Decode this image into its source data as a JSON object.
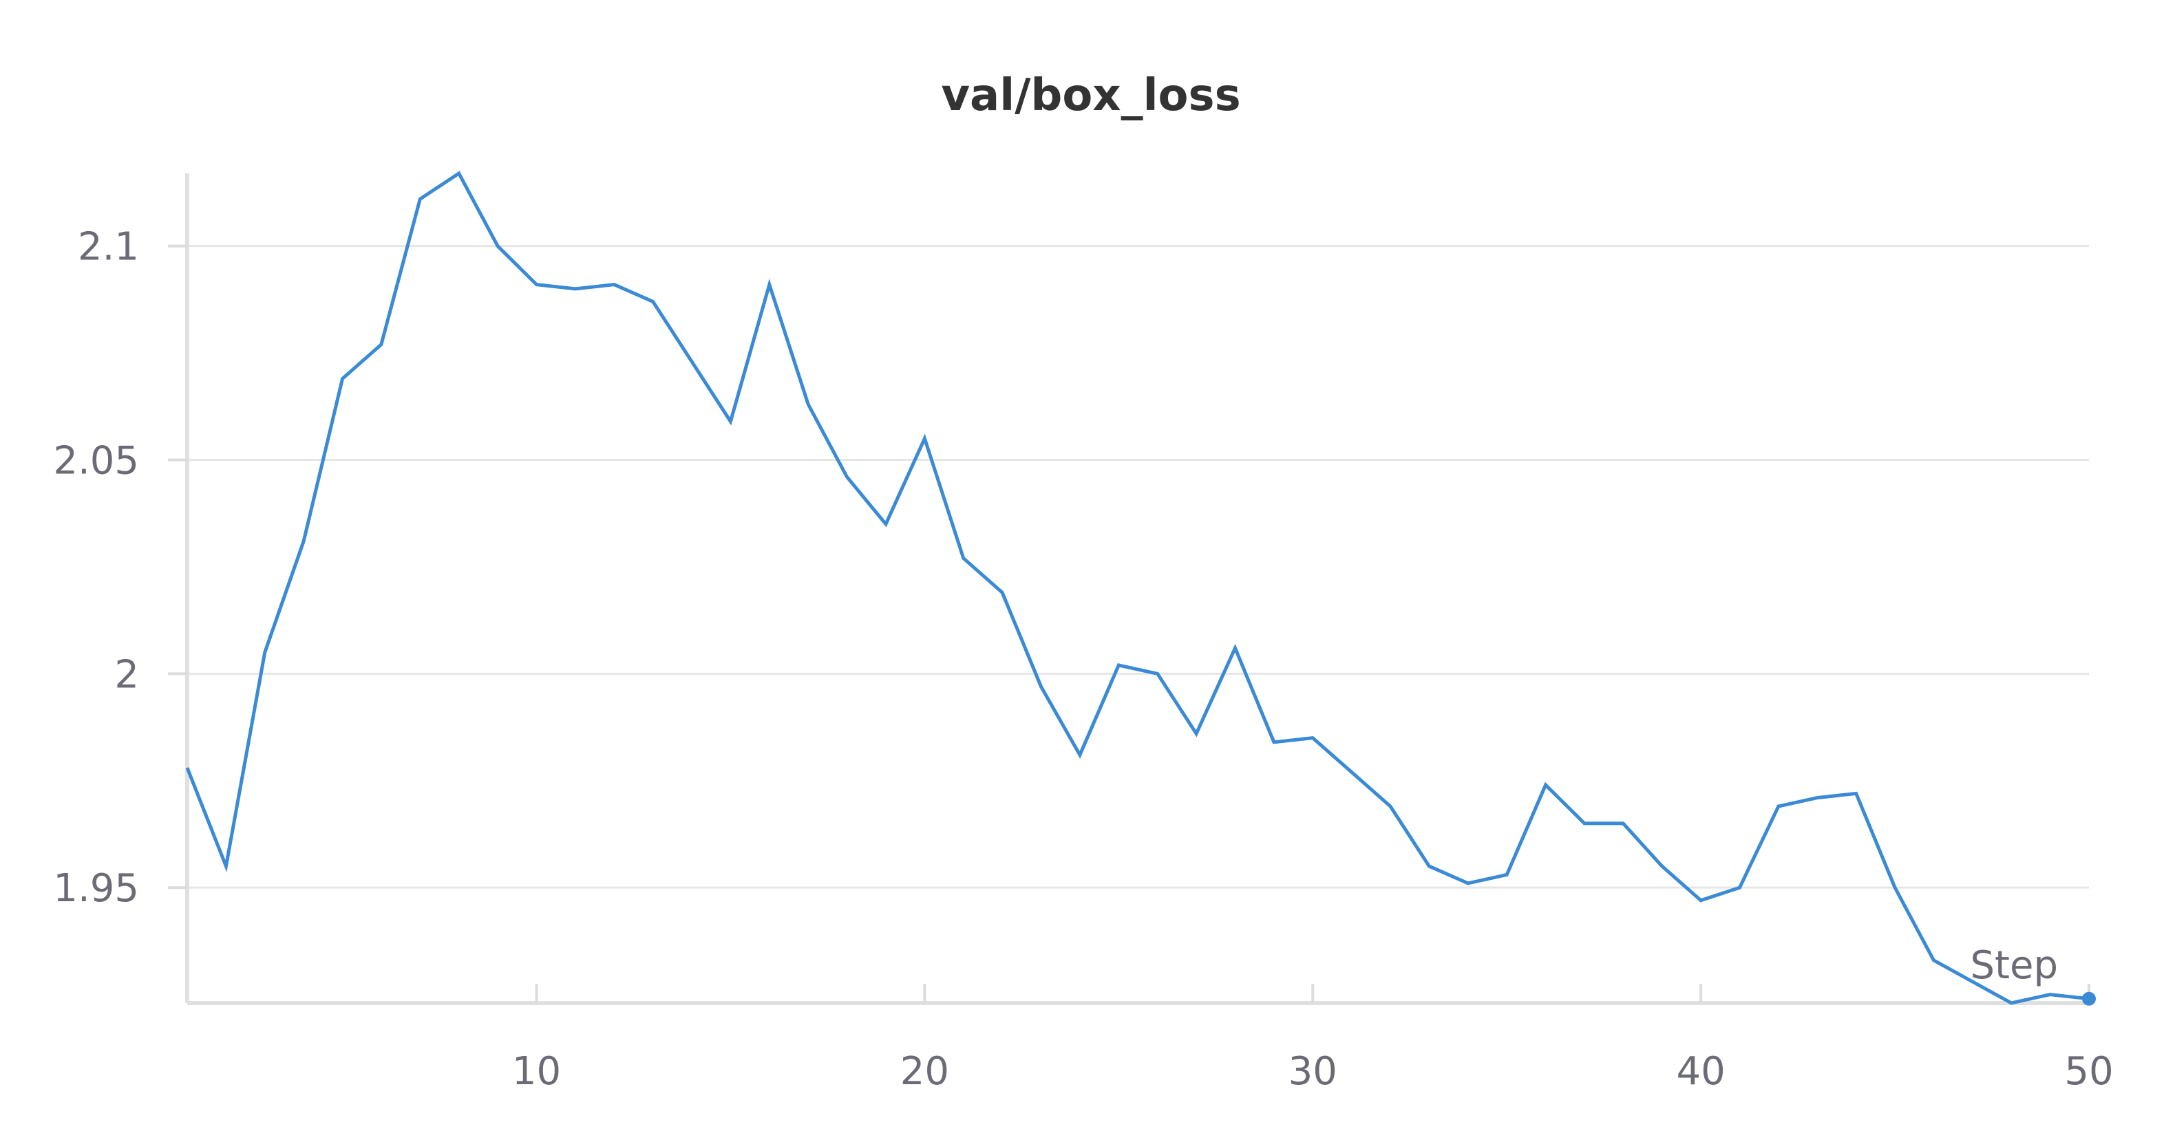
{
  "chart_data": {
    "type": "line",
    "title": "val/box_loss",
    "xlabel": "Step",
    "ylabel": "",
    "xlim": [
      1,
      50
    ],
    "ylim": [
      1.923,
      2.117
    ],
    "xticks": [
      10,
      20,
      30,
      40,
      50
    ],
    "xtick_labels": [
      "10",
      "20",
      "30",
      "40",
      "50"
    ],
    "yticks": [
      1.95,
      2,
      2.05,
      2.1
    ],
    "ytick_labels": [
      "1.95",
      "2",
      "2.05",
      "2.1"
    ],
    "grid": true,
    "legend": "none",
    "color": "#3a8ad6",
    "series": [
      {
        "x": [
          1,
          2,
          3,
          4,
          5,
          6,
          7,
          8,
          9,
          10,
          11,
          12,
          13,
          14,
          15,
          16,
          17,
          18,
          19,
          20,
          21,
          22,
          23,
          24,
          25,
          26,
          27,
          28,
          29,
          30,
          31,
          32,
          33,
          34,
          35,
          36,
          37,
          38,
          39,
          40,
          41,
          42,
          43,
          44,
          45,
          46,
          47,
          48,
          49,
          50
        ],
        "values": [
          1.978,
          1.955,
          2.005,
          2.031,
          2.069,
          2.077,
          2.111,
          2.117,
          2.1,
          2.091,
          2.09,
          2.091,
          2.087,
          2.073,
          2.059,
          2.091,
          2.063,
          2.046,
          2.035,
          2.055,
          2.027,
          2.019,
          1.997,
          1.981,
          2.002,
          2.0,
          1.986,
          2.006,
          1.984,
          1.985,
          1.977,
          1.969,
          1.955,
          1.951,
          1.953,
          1.974,
          1.965,
          1.965,
          1.955,
          1.947,
          1.95,
          1.969,
          1.971,
          1.972,
          1.95,
          1.933,
          1.928,
          1.923,
          1.925,
          1.924
        ]
      }
    ]
  }
}
